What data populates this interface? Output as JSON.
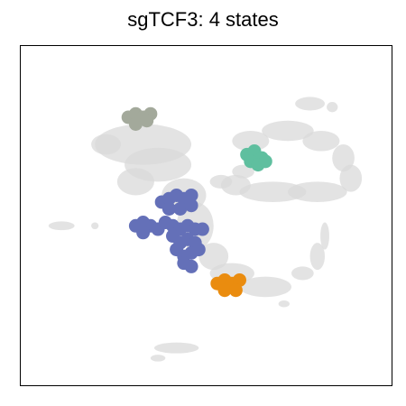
{
  "chart_data": {
    "type": "scatter",
    "title": "sgTCF3: 4 states",
    "xlabel": "",
    "ylabel": "",
    "xlim": [
      0,
      100
    ],
    "ylim": [
      0,
      100
    ],
    "axis_ticks": false,
    "grid": false,
    "legend": "none",
    "background_color": "#d9d9d9",
    "series": [
      {
        "color": "#a3a99b",
        "clusters": [
          {
            "points": [
              [
                29,
                79
              ],
              [
                31,
                80
              ],
              [
                33,
                79
              ],
              [
                31,
                77
              ],
              [
                35,
                80
              ],
              [
                34,
                78
              ]
            ]
          }
        ]
      },
      {
        "color": "#5fbf9f",
        "clusters": [
          {
            "points": [
              [
                61,
                68
              ],
              [
                63,
                69
              ],
              [
                65,
                67
              ],
              [
                62,
                66
              ],
              [
                64,
                65
              ],
              [
                66,
                66
              ]
            ]
          }
        ]
      },
      {
        "color": "#6470b8",
        "clusters": [
          {
            "points": [
              [
                38,
                54
              ],
              [
                40,
                55
              ],
              [
                42,
                56
              ],
              [
                44,
                55
              ],
              [
                46,
                56
              ],
              [
                40,
                52
              ],
              [
                43,
                52
              ],
              [
                46,
                53
              ]
            ]
          },
          {
            "points": [
              [
                31,
                47
              ],
              [
                33,
                48
              ],
              [
                35,
                47
              ],
              [
                33,
                45
              ],
              [
                37,
                46
              ]
            ]
          },
          {
            "points": [
              [
                39,
                48
              ],
              [
                41,
                47
              ],
              [
                43,
                46
              ],
              [
                45,
                47
              ],
              [
                47,
                46
              ],
              [
                49,
                46
              ],
              [
                41,
                44
              ],
              [
                43,
                42
              ],
              [
                45,
                43
              ],
              [
                47,
                42
              ],
              [
                42,
                40
              ],
              [
                44,
                38
              ],
              [
                46,
                39
              ],
              [
                48,
                40
              ],
              [
                44,
                36
              ],
              [
                46,
                35
              ]
            ]
          }
        ]
      },
      {
        "color": "#ea8c0f",
        "clusters": [
          {
            "points": [
              [
                53,
                30
              ],
              [
                55,
                31
              ],
              [
                57,
                30
              ],
              [
                59,
                31
              ],
              [
                55,
                28
              ],
              [
                58,
                28
              ]
            ]
          }
        ]
      }
    ]
  }
}
